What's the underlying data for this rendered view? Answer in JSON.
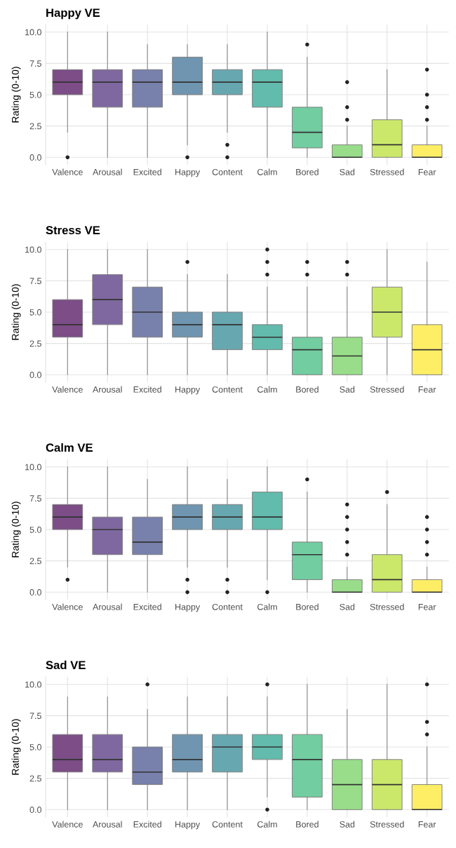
{
  "chart_data": [
    {
      "type": "box",
      "title": "Happy VE",
      "ylabel": "Rating (0-10)",
      "categories": [
        "Valence",
        "Arousal",
        "Excited",
        "Happy",
        "Content",
        "Calm",
        "Bored",
        "Sad",
        "Stressed",
        "Fear"
      ],
      "colors": [
        "#7c4d87",
        "#7f68a0",
        "#7880ac",
        "#6f95b0",
        "#67a7b0",
        "#62bbac",
        "#72cda1",
        "#99dd8a",
        "#cbe86b",
        "#feee66"
      ],
      "boxes": [
        {
          "low": 2,
          "q1": 5,
          "median": 6,
          "q3": 7,
          "high": 10,
          "outliers": [
            0
          ]
        },
        {
          "low": 0,
          "q1": 4,
          "median": 6,
          "q3": 7,
          "high": 10
        },
        {
          "low": 0,
          "q1": 4,
          "median": 6,
          "q3": 7,
          "high": 9
        },
        {
          "low": 1,
          "q1": 5,
          "median": 6,
          "q3": 8,
          "high": 9,
          "outliers": [
            0
          ]
        },
        {
          "low": 2,
          "q1": 5,
          "median": 6,
          "q3": 7,
          "high": 9,
          "outliers": [
            1,
            0
          ]
        },
        {
          "low": 0,
          "q1": 4,
          "median": 6,
          "q3": 7,
          "high": 10
        },
        {
          "low": 0,
          "q1": 0.75,
          "median": 2,
          "q3": 4,
          "high": 8,
          "outliers": [
            9
          ]
        },
        {
          "low": 0,
          "q1": 0,
          "median": 0,
          "q3": 1,
          "high": 2.5,
          "outliers": [
            3,
            4,
            6
          ]
        },
        {
          "low": 0,
          "q1": 0,
          "median": 1,
          "q3": 3,
          "high": 7
        },
        {
          "low": 0,
          "q1": 0,
          "median": 0,
          "q3": 1,
          "high": 2.5,
          "outliers": [
            3,
            4,
            5,
            7
          ]
        }
      ],
      "ylim": [
        -0.6,
        10.6
      ],
      "yticks": [
        {
          "value": 0,
          "label": "0.0"
        },
        {
          "value": 2.5,
          "label": "2.5"
        },
        {
          "value": 5,
          "label": "5.0"
        },
        {
          "value": 7.5,
          "label": "7.5"
        },
        {
          "value": 10,
          "label": "10.0"
        }
      ],
      "grid": true
    },
    {
      "type": "box",
      "title": "Stress VE",
      "ylabel": "Rating (0-10)",
      "categories": [
        "Valence",
        "Arousal",
        "Excited",
        "Happy",
        "Content",
        "Calm",
        "Bored",
        "Sad",
        "Stressed",
        "Fear"
      ],
      "colors": [
        "#7c4d87",
        "#7f68a0",
        "#7880ac",
        "#6f95b0",
        "#67a7b0",
        "#62bbac",
        "#72cda1",
        "#99dd8a",
        "#cbe86b",
        "#feee66"
      ],
      "boxes": [
        {
          "low": 0,
          "q1": 3,
          "median": 4,
          "q3": 6,
          "high": 10
        },
        {
          "low": 0,
          "q1": 4,
          "median": 6,
          "q3": 8,
          "high": 10
        },
        {
          "low": 0,
          "q1": 3,
          "median": 5,
          "q3": 7,
          "high": 10
        },
        {
          "low": 0,
          "q1": 3,
          "median": 4,
          "q3": 5,
          "high": 8,
          "outliers": [
            9
          ]
        },
        {
          "low": 0,
          "q1": 2,
          "median": 4,
          "q3": 5,
          "high": 8
        },
        {
          "low": 0,
          "q1": 2,
          "median": 3,
          "q3": 4,
          "high": 7,
          "outliers": [
            8,
            9,
            10
          ]
        },
        {
          "low": 0,
          "q1": 0,
          "median": 2,
          "q3": 3,
          "high": 7,
          "outliers": [
            8,
            9
          ]
        },
        {
          "low": 0,
          "q1": 0,
          "median": 1.5,
          "q3": 3,
          "high": 7,
          "outliers": [
            8,
            9
          ]
        },
        {
          "low": 0,
          "q1": 3,
          "median": 5,
          "q3": 7,
          "high": 10
        },
        {
          "low": 0,
          "q1": 0,
          "median": 2,
          "q3": 4,
          "high": 9
        }
      ],
      "ylim": [
        -0.6,
        10.6
      ],
      "yticks": [
        {
          "value": 0,
          "label": "0.0"
        },
        {
          "value": 2.5,
          "label": "2.5"
        },
        {
          "value": 5,
          "label": "5.0"
        },
        {
          "value": 7.5,
          "label": "7.5"
        },
        {
          "value": 10,
          "label": "10.0"
        }
      ],
      "grid": true
    },
    {
      "type": "box",
      "title": "Calm VE",
      "ylabel": "Rating (0-10)",
      "categories": [
        "Valence",
        "Arousal",
        "Excited",
        "Happy",
        "Content",
        "Calm",
        "Bored",
        "Sad",
        "Stressed",
        "Fear"
      ],
      "colors": [
        "#7c4d87",
        "#7f68a0",
        "#7880ac",
        "#6f95b0",
        "#67a7b0",
        "#62bbac",
        "#72cda1",
        "#99dd8a",
        "#cbe86b",
        "#feee66"
      ],
      "boxes": [
        {
          "low": 2,
          "q1": 5,
          "median": 6,
          "q3": 7,
          "high": 10,
          "outliers": [
            1
          ]
        },
        {
          "low": 0,
          "q1": 3,
          "median": 5,
          "q3": 6,
          "high": 10
        },
        {
          "low": 0,
          "q1": 3,
          "median": 4,
          "q3": 6,
          "high": 9
        },
        {
          "low": 2,
          "q1": 5,
          "median": 6,
          "q3": 7,
          "high": 10,
          "outliers": [
            1,
            0
          ]
        },
        {
          "low": 2,
          "q1": 5,
          "median": 6,
          "q3": 7,
          "high": 9,
          "outliers": [
            1,
            0
          ]
        },
        {
          "low": 1,
          "q1": 5,
          "median": 6,
          "q3": 8,
          "high": 10,
          "outliers": [
            0
          ]
        },
        {
          "low": 0,
          "q1": 1,
          "median": 3,
          "q3": 4,
          "high": 8,
          "outliers": [
            9
          ]
        },
        {
          "low": 0,
          "q1": 0,
          "median": 0,
          "q3": 1,
          "high": 2,
          "outliers": [
            3,
            4,
            5,
            6,
            7
          ]
        },
        {
          "low": 0,
          "q1": 0,
          "median": 1,
          "q3": 3,
          "high": 7,
          "outliers": [
            8
          ]
        },
        {
          "low": 0,
          "q1": 0,
          "median": 0,
          "q3": 1,
          "high": 2,
          "outliers": [
            3,
            4,
            5,
            6
          ]
        }
      ],
      "ylim": [
        -0.6,
        10.6
      ],
      "yticks": [
        {
          "value": 0,
          "label": "0.0"
        },
        {
          "value": 2.5,
          "label": "2.5"
        },
        {
          "value": 5,
          "label": "5.0"
        },
        {
          "value": 7.5,
          "label": "7.5"
        },
        {
          "value": 10,
          "label": "10.0"
        }
      ],
      "grid": true
    },
    {
      "type": "box",
      "title": "Sad VE",
      "ylabel": "Rating (0-10)",
      "categories": [
        "Valence",
        "Arousal",
        "Excited",
        "Happy",
        "Content",
        "Calm",
        "Bored",
        "Sad",
        "Stressed",
        "Fear"
      ],
      "colors": [
        "#7c4d87",
        "#7f68a0",
        "#7880ac",
        "#6f95b0",
        "#67a7b0",
        "#62bbac",
        "#72cda1",
        "#99dd8a",
        "#cbe86b",
        "#feee66"
      ],
      "boxes": [
        {
          "low": 0,
          "q1": 3,
          "median": 4,
          "q3": 6,
          "high": 9
        },
        {
          "low": 0,
          "q1": 3,
          "median": 4,
          "q3": 6,
          "high": 9
        },
        {
          "low": 0,
          "q1": 2,
          "median": 3,
          "q3": 5,
          "high": 8,
          "outliers": [
            10
          ]
        },
        {
          "low": 0,
          "q1": 3,
          "median": 4,
          "q3": 6,
          "high": 9
        },
        {
          "low": 0,
          "q1": 3,
          "median": 5,
          "q3": 6,
          "high": 9
        },
        {
          "low": 1,
          "q1": 4,
          "median": 5,
          "q3": 6,
          "high": 9,
          "outliers": [
            0,
            10
          ]
        },
        {
          "low": 0,
          "q1": 1,
          "median": 4,
          "q3": 6,
          "high": 10
        },
        {
          "low": 0,
          "q1": 0,
          "median": 2,
          "q3": 4,
          "high": 8
        },
        {
          "low": 0,
          "q1": 0,
          "median": 2,
          "q3": 4,
          "high": 10
        },
        {
          "low": 0,
          "q1": 0,
          "median": 0,
          "q3": 2,
          "high": 5,
          "outliers": [
            6,
            7,
            10
          ]
        }
      ],
      "ylim": [
        -0.6,
        10.6
      ],
      "yticks": [
        {
          "value": 0,
          "label": "0.0"
        },
        {
          "value": 2.5,
          "label": "2.5"
        },
        {
          "value": 5,
          "label": "5.0"
        },
        {
          "value": 7.5,
          "label": "7.5"
        },
        {
          "value": 10,
          "label": "10.0"
        }
      ],
      "grid": true
    }
  ]
}
